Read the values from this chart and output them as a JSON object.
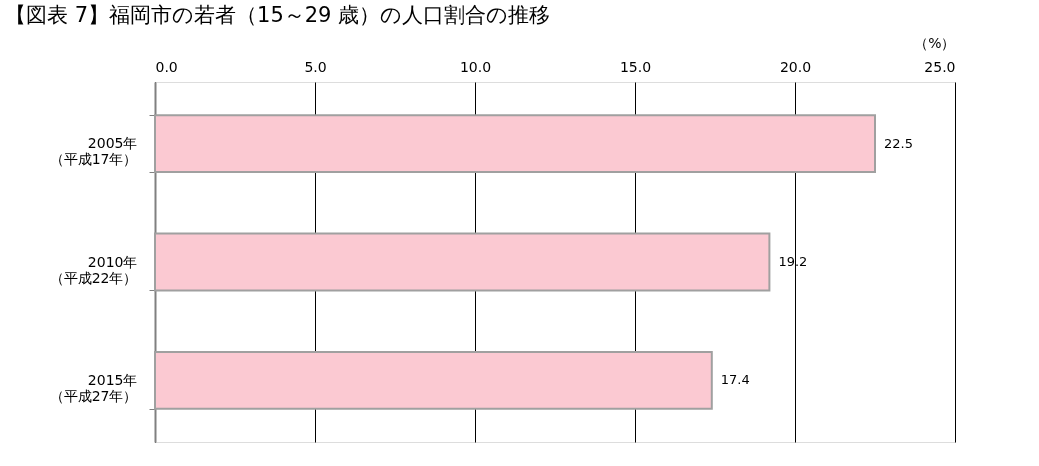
{
  "chart_data": {
    "type": "bar",
    "orientation": "horizontal",
    "title": "【図表 7】福岡市の若者（15～29 歳）の人口割合の推移",
    "xlabel": "（%）",
    "categories": [
      "2005年（平成17年）",
      "2010年（平成22年）",
      "2015年（平成27年）"
    ],
    "values": [
      22.5,
      19.2,
      17.4
    ],
    "color": "#fbc9d2",
    "xlim": [
      0,
      25
    ],
    "xticks": [
      {
        "value": 0,
        "label": "0.0"
      },
      {
        "value": 5,
        "label": "5.0"
      },
      {
        "value": 10,
        "label": "10.0"
      },
      {
        "value": 15,
        "label": "15.0"
      },
      {
        "value": 20,
        "label": "20.0"
      },
      {
        "value": 25,
        "label": "25.0"
      }
    ],
    "grid": "x",
    "data_labels": true
  }
}
